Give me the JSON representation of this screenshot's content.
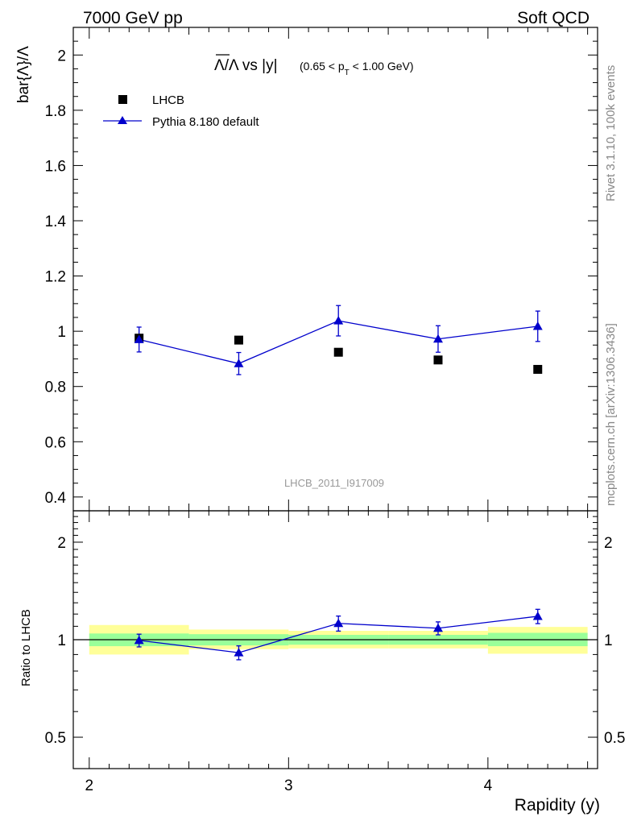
{
  "header": {
    "left": "7000 GeV pp",
    "right": "Soft QCD"
  },
  "side_labels": {
    "rivet": "Rivet 3.1.10,  100k events",
    "mcplots": "mcplots.cern.ch [arXiv:1306.3436]"
  },
  "chart_data": [
    {
      "type": "scatter",
      "title_main": "Λ/Λ vs |y|",
      "title_sub": "(0.65 < p",
      "title_sub_T": "T",
      "title_sub_end": " < 1.00 GeV)",
      "ylabel": "bar{Λ}/Λ",
      "watermark": "LHCB_2011_I917009",
      "xlim": [
        1.92,
        4.55
      ],
      "ylim": [
        0.35,
        2.1
      ],
      "yticks": [
        0.4,
        0.6,
        0.8,
        1.0,
        1.2,
        1.4,
        1.6,
        1.8,
        2.0
      ],
      "ytick_labels": [
        "0.4",
        "0.6",
        "0.8",
        "1",
        "1.2",
        "1.4",
        "1.6",
        "1.8",
        "2"
      ],
      "legend": [
        {
          "label": "LHCB",
          "marker": "square",
          "color": "#000000"
        },
        {
          "label": "Pythia 8.180 default",
          "marker": "triangle",
          "color": "#0000cc"
        }
      ],
      "series": [
        {
          "name": "LHCB",
          "x": [
            2.25,
            2.75,
            3.25,
            3.75,
            4.25
          ],
          "y": [
            0.975,
            0.968,
            0.924,
            0.896,
            0.862
          ]
        },
        {
          "name": "Pythia 8.180 default",
          "x": [
            2.25,
            2.75,
            3.25,
            3.75,
            4.25
          ],
          "y": [
            0.97,
            0.883,
            1.038,
            0.972,
            1.018
          ],
          "err": [
            0.045,
            0.04,
            0.055,
            0.048,
            0.055
          ]
        }
      ]
    },
    {
      "type": "scatter",
      "ylabel": "Ratio to LHCB",
      "xlabel": "Rapidity (y)",
      "xlim": [
        1.92,
        4.55
      ],
      "ylim_log": [
        0.4,
        2.5
      ],
      "yticks": [
        0.5,
        1,
        2
      ],
      "ytick_labels": [
        "0.5",
        "1",
        "2"
      ],
      "xticks": [
        2,
        3,
        4
      ],
      "xtick_labels": [
        "2",
        "3",
        "4"
      ],
      "bands": [
        {
          "x": [
            2.0,
            2.5
          ],
          "green": [
            0.955,
            1.045
          ],
          "yellow": [
            0.9,
            1.11
          ]
        },
        {
          "x": [
            2.5,
            3.0
          ],
          "green": [
            0.96,
            1.04
          ],
          "yellow": [
            0.935,
            1.075
          ]
        },
        {
          "x": [
            3.0,
            3.5
          ],
          "green": [
            0.965,
            1.035
          ],
          "yellow": [
            0.94,
            1.065
          ]
        },
        {
          "x": [
            3.5,
            4.0
          ],
          "green": [
            0.965,
            1.035
          ],
          "yellow": [
            0.94,
            1.065
          ]
        },
        {
          "x": [
            4.0,
            4.5
          ],
          "green": [
            0.955,
            1.05
          ],
          "yellow": [
            0.905,
            1.095
          ]
        }
      ],
      "series": [
        {
          "name": "Pythia 8.180 default",
          "x": [
            2.25,
            2.75,
            3.25,
            3.75,
            4.25
          ],
          "y": [
            0.995,
            0.912,
            1.123,
            1.085,
            1.181
          ],
          "err": [
            0.045,
            0.045,
            0.06,
            0.05,
            0.06
          ]
        }
      ]
    }
  ]
}
